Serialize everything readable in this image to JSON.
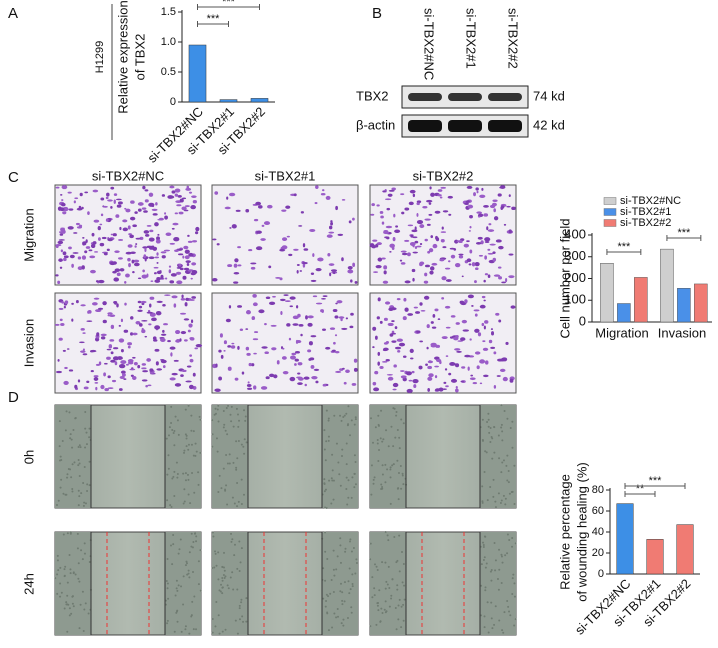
{
  "panel_labels": [
    "A",
    "B",
    "C",
    "D"
  ],
  "chart_data": [
    {
      "type": "bar",
      "side_label": "H1299",
      "ylabel": [
        "Relative expression",
        "of TBX2"
      ],
      "categories": [
        "si-TBX2#NC",
        "si-TBX2#1",
        "si-TBX2#2"
      ],
      "values": [
        0.95,
        0.04,
        0.06
      ],
      "colors": [
        "#3d8fe6",
        "#3d8fe6",
        "#3d8fe6"
      ],
      "ylim": [
        0,
        1.5
      ],
      "yticks": [
        0,
        0.5,
        {
          "value": 1,
          "label": "1.0"
        },
        1.5
      ],
      "annotations": [
        "***",
        "***"
      ]
    },
    {
      "type": "grouped-bar",
      "ylabel": [
        "Cell number per field"
      ],
      "categories": [
        "Migration",
        "Invasion"
      ],
      "series": [
        {
          "name": "si-TBX2#NC",
          "color": "#cfcfcf",
          "values": [
            270,
            335
          ]
        },
        {
          "name": "si-TBX2#1",
          "color": "#4a90e8",
          "values": [
            85,
            155
          ]
        },
        {
          "name": "si-TBX2#2",
          "color": "#f07b73",
          "values": [
            205,
            175
          ]
        }
      ],
      "ylim": [
        0,
        400
      ],
      "yticks": [
        0,
        100,
        200,
        300,
        400
      ],
      "annotations": [
        "***",
        "***"
      ]
    },
    {
      "type": "bar",
      "ylabel": [
        "Relative percentage",
        "of wounding healing (%)"
      ],
      "categories": [
        "si-TBX2#NC",
        "si-TBX2#1",
        "si-TBX2#2"
      ],
      "values": [
        67,
        33,
        47
      ],
      "colors": [
        "#3d8fe6",
        "#f07b73",
        "#f07b73"
      ],
      "ylim": [
        0,
        80
      ],
      "yticks": [
        0,
        20,
        40,
        60,
        80
      ],
      "annotations": [
        "**",
        "***"
      ]
    }
  ],
  "blot": {
    "lanes": [
      "si-TBX2#NC",
      "si-TBX2#1",
      "si-TBX2#2"
    ],
    "rows": [
      {
        "label": "TBX2",
        "size": "74 kd"
      },
      {
        "label": "β-actin",
        "size": "42 kd"
      }
    ]
  },
  "migration_panel": {
    "columns": [
      "si-TBX2#NC",
      "si-TBX2#1",
      "si-TBX2#2"
    ],
    "rows": [
      "Migration",
      "Invasion"
    ]
  },
  "wound_panel": {
    "rows": [
      "0h",
      "24h"
    ]
  }
}
